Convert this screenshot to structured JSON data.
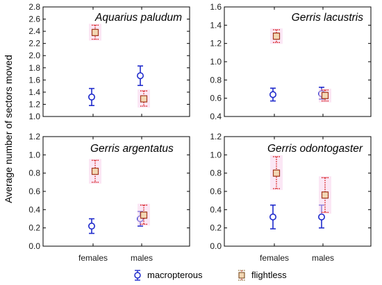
{
  "colors": {
    "macropterous": "#1f2bcc",
    "flightless": "#d81e1e",
    "flightless_box_fill": "#f3d7b4",
    "flightless_box_edge": "#7a4a1e",
    "flightless_tick_muted": "#8a6a30",
    "halo": "#f8d3ec"
  },
  "chart_data": {
    "type": "scatter",
    "ylabel": "Average number of sectors moved",
    "categories": [
      "females",
      "males"
    ],
    "legend": {
      "position": "bottom",
      "entries": [
        {
          "key": "macropterous",
          "label": "macropterous",
          "marker": "circle"
        },
        {
          "key": "flightless",
          "label": "flightless",
          "marker": "square"
        }
      ]
    },
    "panels": [
      {
        "title": "Aquarius paludum",
        "ylim": [
          1.0,
          2.8
        ],
        "yticks": [
          "1.0",
          "1.2",
          "1.4",
          "1.6",
          "1.8",
          "2.0",
          "2.2",
          "2.4",
          "2.6",
          "2.8"
        ],
        "series": [
          {
            "key": "macropterous",
            "values": [
              1.32,
              1.67
            ],
            "lower": [
              1.18,
              1.51
            ],
            "upper": [
              1.46,
              1.83
            ]
          },
          {
            "key": "flightless",
            "values": [
              2.38,
              1.29
            ],
            "lower": [
              2.27,
              1.17
            ],
            "upper": [
              2.5,
              1.42
            ]
          }
        ]
      },
      {
        "title": "Gerris lacustris",
        "ylim": [
          0.4,
          1.6
        ],
        "yticks": [
          "0.4",
          "0.6",
          "0.8",
          "1.0",
          "1.2",
          "1.4",
          "1.6"
        ],
        "series": [
          {
            "key": "macropterous",
            "values": [
              0.64,
              0.65
            ],
            "lower": [
              0.57,
              0.59
            ],
            "upper": [
              0.71,
              0.72
            ]
          },
          {
            "key": "flightless",
            "values": [
              1.28,
              0.63
            ],
            "lower": [
              1.21,
              0.57
            ],
            "upper": [
              1.35,
              0.69
            ]
          }
        ]
      },
      {
        "title": "Gerris argentatus",
        "ylim": [
          0.0,
          1.2
        ],
        "yticks": [
          "0.0",
          "0.2",
          "0.4",
          "0.6",
          "0.8",
          "1.0",
          "1.2"
        ],
        "series": [
          {
            "key": "macropterous",
            "values": [
              0.22,
              0.3
            ],
            "lower": [
              0.14,
              0.22
            ],
            "upper": [
              0.3,
              0.38
            ]
          },
          {
            "key": "flightless",
            "values": [
              0.82,
              0.34
            ],
            "lower": [
              0.7,
              0.24
            ],
            "upper": [
              0.94,
              0.45
            ]
          }
        ]
      },
      {
        "title": "Gerris odontogaster",
        "ylim": [
          0.0,
          1.2
        ],
        "yticks": [
          "0.0",
          "0.2",
          "0.4",
          "0.6",
          "0.8",
          "1.0",
          "1.2"
        ],
        "series": [
          {
            "key": "macropterous",
            "values": [
              0.32,
              0.32
            ],
            "lower": [
              0.19,
              0.2
            ],
            "upper": [
              0.45,
              0.45
            ]
          },
          {
            "key": "flightless",
            "values": [
              0.8,
              0.56
            ],
            "lower": [
              0.63,
              0.37
            ],
            "upper": [
              0.98,
              0.75
            ]
          }
        ]
      }
    ]
  }
}
